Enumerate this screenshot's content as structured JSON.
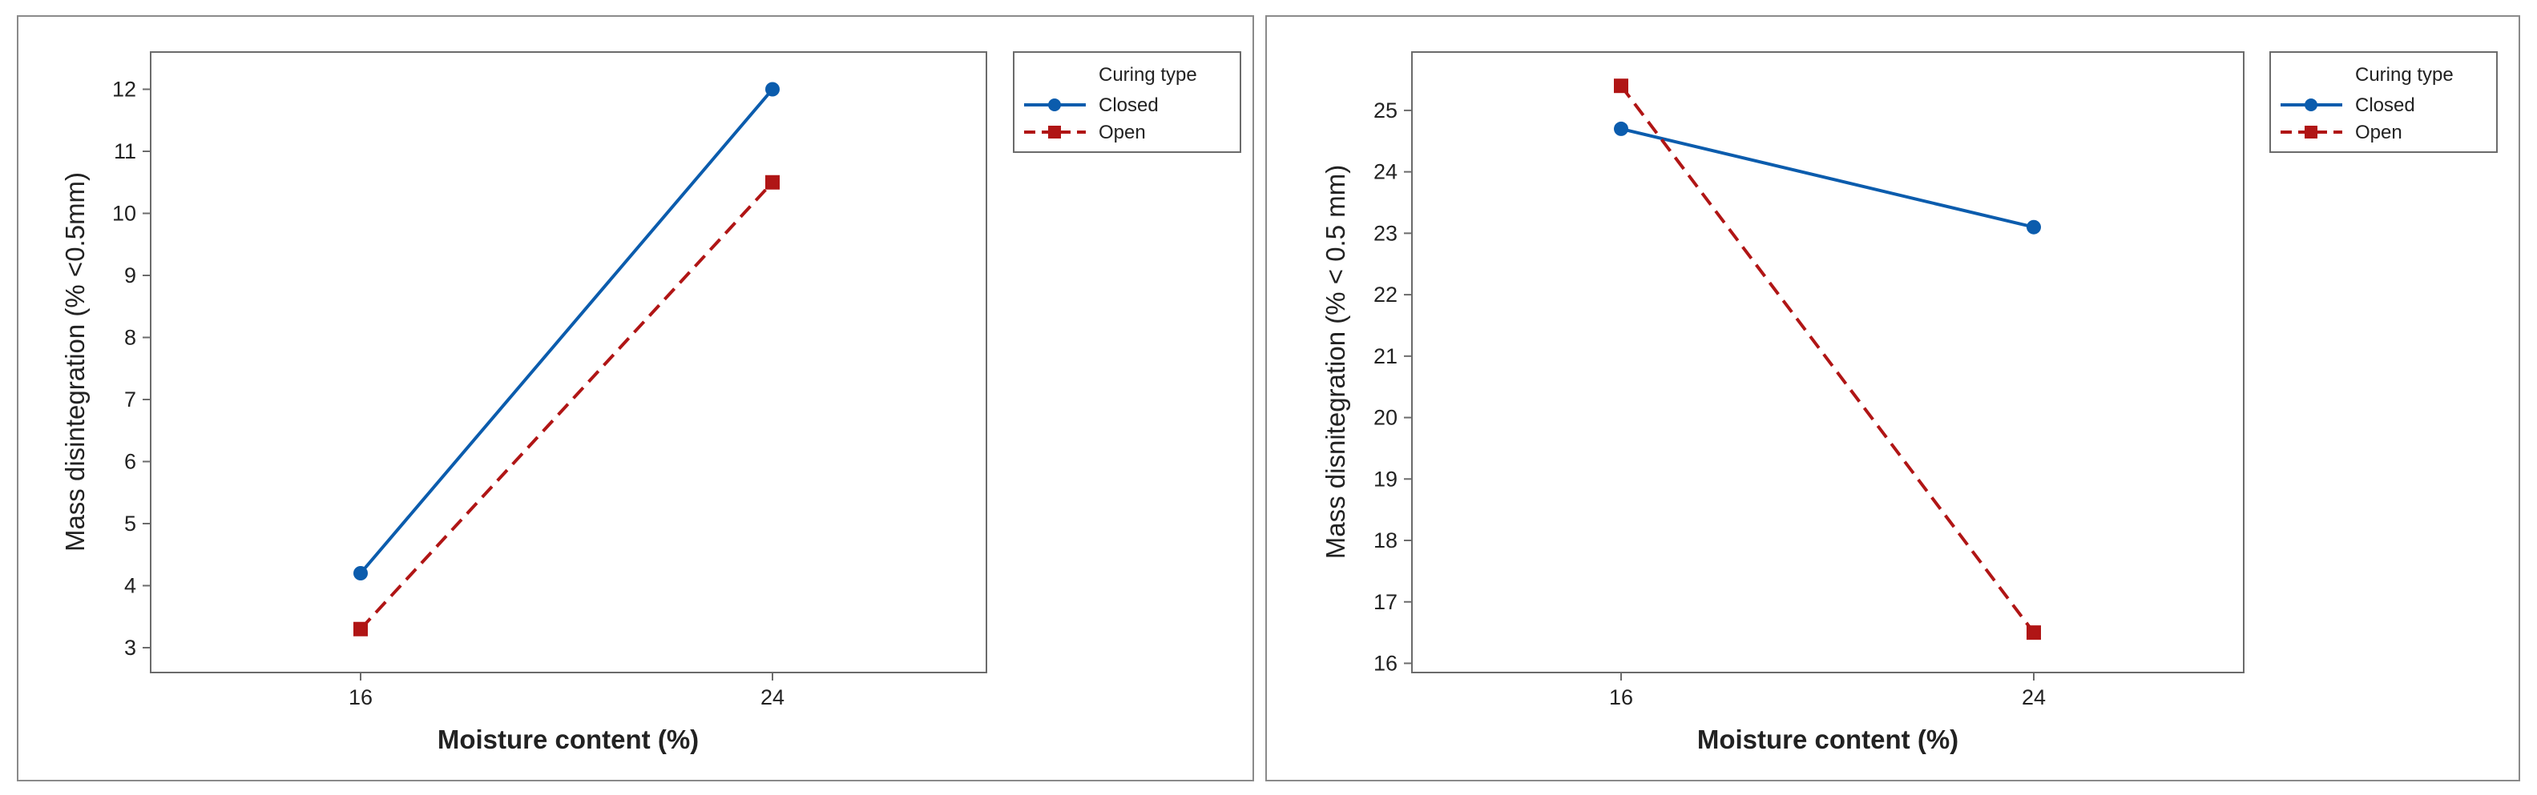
{
  "chart_data": [
    {
      "type": "line",
      "xlabel": "Moisture content (%)",
      "ylabel": "Mass disintegration (% <0.5mm)",
      "categories": [
        "16",
        "24"
      ],
      "yticks": [
        3,
        4,
        5,
        6,
        7,
        8,
        9,
        10,
        11,
        12
      ],
      "ylim": [
        2.6,
        12.6
      ],
      "grid": false,
      "legend": {
        "title": "Curing type",
        "placement": "right",
        "entries": [
          "Closed",
          "Open"
        ]
      },
      "series": [
        {
          "name": "Closed",
          "values": [
            4.2,
            12.0
          ],
          "color": "#0b5cad",
          "marker": "circle",
          "line": "solid"
        },
        {
          "name": "Open",
          "values": [
            3.3,
            10.5
          ],
          "color": "#b01515",
          "marker": "square",
          "line": "dashed"
        }
      ]
    },
    {
      "type": "line",
      "xlabel": "Moisture content (%)",
      "ylabel": "Mass disnitegration (% < 0.5 mm)",
      "categories": [
        "16",
        "24"
      ],
      "yticks": [
        16,
        17,
        18,
        19,
        20,
        21,
        22,
        23,
        24,
        25
      ],
      "ylim": [
        15.85,
        25.95
      ],
      "grid": false,
      "legend": {
        "title": "Curing type",
        "placement": "right",
        "entries": [
          "Closed",
          "Open"
        ]
      },
      "series": [
        {
          "name": "Closed",
          "values": [
            24.7,
            23.1
          ],
          "color": "#0b5cad",
          "marker": "circle",
          "line": "solid"
        },
        {
          "name": "Open",
          "values": [
            25.4,
            16.5
          ],
          "color": "#b01515",
          "marker": "square",
          "line": "dashed"
        }
      ]
    }
  ]
}
